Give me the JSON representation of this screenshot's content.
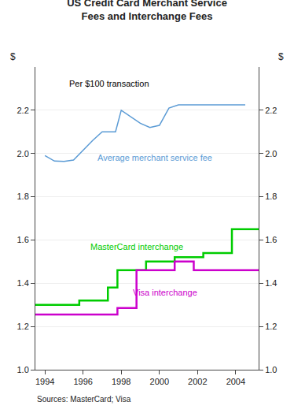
{
  "chart_data": {
    "type": "line",
    "title": "US Credit Card Merchant Service\nFees and Interchange Fees",
    "subtitle": "Per $100 transaction",
    "ylabel": "$",
    "y2label": "$",
    "source": "Sources: MasterCard; Visa",
    "xlim": [
      1993.5,
      2005.2
    ],
    "xticks": [
      1994,
      1996,
      1998,
      2000,
      2002,
      2004
    ],
    "ylim": [
      1.0,
      2.4
    ],
    "yticks": [
      {
        "value": 1.0,
        "label": "1.0"
      },
      1.2,
      1.4,
      1.6,
      1.8,
      {
        "value": 2.0,
        "label": "2.0"
      },
      2.2
    ],
    "y2lim": [
      1.0,
      2.4
    ],
    "y2ticks": [
      {
        "value": 1.0,
        "label": "1.0"
      },
      1.2,
      1.4,
      1.6,
      1.8,
      {
        "value": 2.0,
        "label": "2.0"
      },
      2.2
    ],
    "grid": "y",
    "series": [
      {
        "name": "Average merchant service fee",
        "color": "#5B9BD5",
        "x": [
          1994,
          1994.5,
          1995,
          1995.5,
          1996.5,
          1997,
          1997.7,
          1998.0,
          1999.0,
          1999.5,
          2000.0,
          2000.5,
          2001.0,
          2001.5,
          2002.0,
          2004.5
        ],
        "values": [
          1.99,
          1.965,
          1.963,
          1.97,
          2.06,
          2.1,
          2.1,
          2.2,
          2.14,
          2.12,
          2.13,
          2.21,
          2.225,
          2.225,
          2.225,
          2.225
        ]
      },
      {
        "name": "MasterCard interchange",
        "color": "#00CC00",
        "x": [
          1993.5,
          1995.8,
          1995.8,
          1997.3,
          1997.3,
          1997.8,
          1997.8,
          1999.3,
          1999.3,
          2000.8,
          2000.8,
          2002.3,
          2002.3,
          2003.8,
          2003.8,
          2005.2
        ],
        "values": [
          1.3,
          1.3,
          1.32,
          1.32,
          1.38,
          1.38,
          1.46,
          1.46,
          1.5,
          1.5,
          1.52,
          1.52,
          1.54,
          1.54,
          1.65,
          1.65
        ]
      },
      {
        "name": "Visa interchange",
        "color": "#CC00CC",
        "x": [
          1993.5,
          1997.8,
          1997.8,
          1998.8,
          1998.8,
          2000.8,
          2000.8,
          2001.8,
          2001.8,
          2005.2
        ],
        "values": [
          1.255,
          1.255,
          1.285,
          1.285,
          1.46,
          1.46,
          1.5,
          1.5,
          1.46,
          1.46
        ]
      }
    ]
  }
}
